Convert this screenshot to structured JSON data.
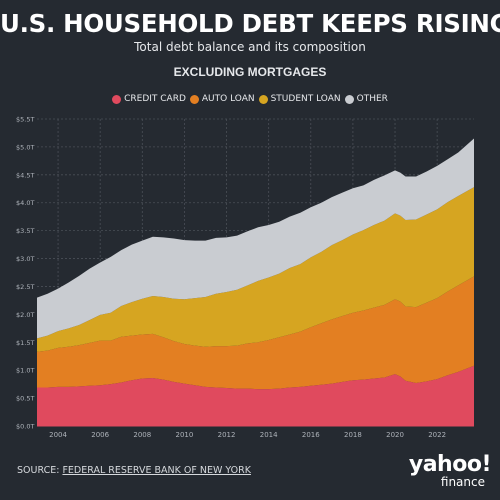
{
  "header": {
    "title": "U.S. HOUSEHOLD DEBT KEEPS RISING",
    "subtitle": "Total debt balance and its composition",
    "section_label": "EXCLUDING MORTGAGES"
  },
  "footer": {
    "source_prefix": "SOURCE: ",
    "source_name": "FEDERAL RESERVE BANK OF NEW YORK"
  },
  "logo": {
    "word": "yahoo!",
    "sub": "finance"
  },
  "chart_data": {
    "type": "area",
    "stacked": true,
    "grid": true,
    "legend_placement": "top-center",
    "xlim": [
      2003.0,
      2023.75
    ],
    "ylim": [
      0,
      5.5
    ],
    "y_ticks": [
      0,
      0.5,
      1.0,
      1.5,
      2.0,
      2.5,
      3.0,
      3.5,
      4.0,
      4.5,
      5.0,
      5.5
    ],
    "y_tick_labels": [
      "$0.0T",
      "$0.5T",
      "$1.0T",
      "$1.5T",
      "$2.0T",
      "$2.5T",
      "$3.0T",
      "$3.5T",
      "$4.0T",
      "$4.5T",
      "$5.0T",
      "$5.5T"
    ],
    "x_ticks": [
      2004,
      2006,
      2008,
      2010,
      2012,
      2014,
      2016,
      2018,
      2020,
      2022
    ],
    "x_tick_labels": [
      "2004",
      "2006",
      "2008",
      "2010",
      "2012",
      "2014",
      "2016",
      "2018",
      "2020",
      "2022"
    ],
    "x": [
      2003.0,
      2003.5,
      2004.0,
      2004.5,
      2005.0,
      2005.5,
      2006.0,
      2006.5,
      2007.0,
      2007.5,
      2008.0,
      2008.5,
      2009.0,
      2009.5,
      2010.0,
      2010.5,
      2011.0,
      2011.5,
      2012.0,
      2012.5,
      2013.0,
      2013.5,
      2014.0,
      2014.5,
      2015.0,
      2015.5,
      2016.0,
      2016.5,
      2017.0,
      2017.5,
      2018.0,
      2018.5,
      2019.0,
      2019.5,
      2020.0,
      2020.25,
      2020.5,
      2021.0,
      2021.5,
      2022.0,
      2022.5,
      2023.0,
      2023.75
    ],
    "series": [
      {
        "name": "CREDIT CARD",
        "color": "#e04a5e",
        "values": [
          0.69,
          0.69,
          0.7,
          0.7,
          0.71,
          0.72,
          0.73,
          0.75,
          0.78,
          0.82,
          0.85,
          0.86,
          0.83,
          0.79,
          0.76,
          0.73,
          0.7,
          0.69,
          0.68,
          0.67,
          0.67,
          0.66,
          0.66,
          0.67,
          0.69,
          0.7,
          0.72,
          0.74,
          0.76,
          0.79,
          0.82,
          0.83,
          0.85,
          0.87,
          0.93,
          0.89,
          0.81,
          0.77,
          0.8,
          0.84,
          0.91,
          0.97,
          1.08
        ]
      },
      {
        "name": "AUTO LOAN",
        "color": "#e37f22",
        "values": [
          0.64,
          0.66,
          0.7,
          0.72,
          0.74,
          0.77,
          0.8,
          0.78,
          0.82,
          0.8,
          0.79,
          0.79,
          0.76,
          0.73,
          0.71,
          0.71,
          0.72,
          0.74,
          0.75,
          0.77,
          0.81,
          0.84,
          0.88,
          0.92,
          0.95,
          0.99,
          1.05,
          1.1,
          1.15,
          1.18,
          1.21,
          1.24,
          1.27,
          1.3,
          1.34,
          1.34,
          1.33,
          1.36,
          1.41,
          1.45,
          1.5,
          1.55,
          1.6
        ]
      },
      {
        "name": "STUDENT LOAN",
        "color": "#d6a521",
        "values": [
          0.24,
          0.27,
          0.3,
          0.33,
          0.36,
          0.41,
          0.46,
          0.5,
          0.55,
          0.6,
          0.64,
          0.68,
          0.72,
          0.76,
          0.8,
          0.85,
          0.89,
          0.94,
          0.97,
          1.0,
          1.04,
          1.1,
          1.12,
          1.14,
          1.19,
          1.21,
          1.25,
          1.28,
          1.33,
          1.36,
          1.4,
          1.44,
          1.48,
          1.51,
          1.54,
          1.54,
          1.55,
          1.57,
          1.58,
          1.59,
          1.6,
          1.6,
          1.6
        ]
      },
      {
        "name": "OTHER",
        "color": "#c9ccd1",
        "values": [
          0.73,
          0.75,
          0.76,
          0.82,
          0.88,
          0.92,
          0.94,
          1.0,
          1.0,
          1.03,
          1.04,
          1.06,
          1.07,
          1.08,
          1.06,
          1.03,
          1.01,
          1.0,
          0.98,
          0.97,
          0.97,
          0.96,
          0.94,
          0.93,
          0.92,
          0.92,
          0.9,
          0.88,
          0.86,
          0.85,
          0.83,
          0.8,
          0.81,
          0.81,
          0.77,
          0.77,
          0.78,
          0.77,
          0.77,
          0.78,
          0.77,
          0.78,
          0.87
        ]
      }
    ]
  }
}
